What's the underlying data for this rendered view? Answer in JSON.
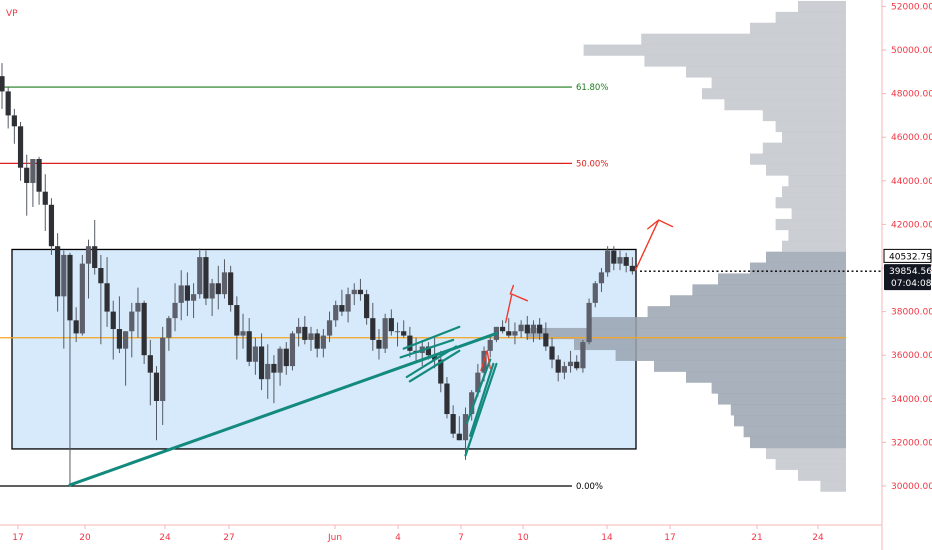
{
  "chart_data": {
    "type": "candlestick",
    "indicator_label": "VP",
    "x_ticks": [
      "17",
      "20",
      "24",
      "27",
      "Jun",
      "4",
      "7",
      "10",
      "14",
      "17",
      "21",
      "24"
    ],
    "y_ticks": [
      30000,
      32000,
      34000,
      36000,
      38000,
      40000,
      42000,
      44000,
      46000,
      48000,
      50000,
      52000
    ],
    "y_tick_labels": [
      "30000.00",
      "32000.00",
      "34000.00",
      "36000.00",
      "38000.00",
      "40000.00",
      "42000.00",
      "44000.00",
      "46000.00",
      "48000.00",
      "50000.00",
      "52000.00"
    ],
    "ylim": [
      27500,
      52300
    ],
    "fib_levels": [
      {
        "label": "61.80%",
        "value": 48300,
        "color": "#1b7a1b"
      },
      {
        "label": "50.00%",
        "value": 44800,
        "color": "#e0201c"
      },
      {
        "label": "0.00%",
        "value": 30000,
        "color": "#000000"
      }
    ],
    "range_box": {
      "top": 40850,
      "bottom": 31700,
      "fill": "#d6eafb"
    },
    "poc_level": 36800,
    "last_price": {
      "value": "39854.56",
      "countdown": "07:04:08",
      "level": 39854.56
    },
    "high_tag": {
      "value": "40532.79",
      "level": 40532.79
    },
    "candles": [
      [
        0.0,
        48800,
        49400,
        47300,
        48100
      ],
      [
        0.4,
        48100,
        48300,
        46400,
        47000
      ],
      [
        0.8,
        47000,
        47300,
        45700,
        46500
      ],
      [
        1.2,
        46500,
        46700,
        44000,
        44600
      ],
      [
        1.6,
        44600,
        45200,
        42400,
        43900
      ],
      [
        2.0,
        43900,
        45000,
        42800,
        45000
      ],
      [
        2.4,
        45000,
        45100,
        42900,
        43500
      ],
      [
        2.8,
        43500,
        44300,
        41700,
        42900
      ],
      [
        3.2,
        42900,
        43200,
        40600,
        41000
      ],
      [
        3.6,
        41000,
        41600,
        38000,
        38700
      ],
      [
        4.0,
        38700,
        40800,
        36300,
        40600
      ],
      [
        4.4,
        40600,
        40700,
        30000,
        37600
      ],
      [
        4.8,
        37600,
        38200,
        36600,
        37000
      ],
      [
        5.2,
        37000,
        40600,
        36900,
        40200
      ],
      [
        5.6,
        40200,
        41300,
        38600,
        41000
      ],
      [
        6.0,
        41000,
        42200,
        39700,
        40000
      ],
      [
        6.4,
        40000,
        40600,
        36500,
        39300
      ],
      [
        6.8,
        39300,
        40500,
        37300,
        38000
      ],
      [
        7.2,
        38000,
        38500,
        35800,
        37200
      ],
      [
        7.6,
        37200,
        38700,
        36100,
        36300
      ],
      [
        8.0,
        36300,
        37100,
        34600,
        37100
      ],
      [
        8.4,
        37100,
        38400,
        35900,
        38000
      ],
      [
        8.8,
        38000,
        39100,
        36800,
        38400
      ],
      [
        9.2,
        38400,
        38500,
        35600,
        36000
      ],
      [
        9.6,
        36000,
        36700,
        33700,
        35200
      ],
      [
        10.0,
        35200,
        35500,
        32100,
        33900
      ],
      [
        10.4,
        33900,
        37300,
        32800,
        36800
      ],
      [
        10.8,
        36800,
        37800,
        36200,
        37700
      ],
      [
        11.2,
        37700,
        39300,
        37100,
        38400
      ],
      [
        11.6,
        38400,
        39900,
        37600,
        39200
      ],
      [
        12.0,
        39200,
        39800,
        37800,
        38500
      ],
      [
        12.4,
        38500,
        39300,
        37700,
        38800
      ],
      [
        12.8,
        38800,
        40900,
        38600,
        40500
      ],
      [
        13.2,
        40500,
        40800,
        38300,
        38600
      ],
      [
        13.6,
        38600,
        39500,
        37800,
        39300
      ],
      [
        14.0,
        39300,
        40100,
        38100,
        38800
      ],
      [
        14.4,
        38800,
        40400,
        38600,
        39800
      ],
      [
        14.8,
        39800,
        40100,
        38000,
        38300
      ],
      [
        15.2,
        38300,
        38700,
        35800,
        36900
      ],
      [
        15.6,
        36900,
        37900,
        36300,
        37100
      ],
      [
        16.0,
        37100,
        37700,
        35500,
        35700
      ],
      [
        16.4,
        35700,
        36800,
        35100,
        36400
      ],
      [
        16.8,
        36400,
        37000,
        34400,
        34900
      ],
      [
        17.2,
        34900,
        36500,
        34000,
        35600
      ],
      [
        17.6,
        35600,
        36000,
        33800,
        35200
      ],
      [
        18.0,
        35200,
        36400,
        34600,
        36300
      ],
      [
        18.4,
        36300,
        36600,
        35100,
        35500
      ],
      [
        18.8,
        35500,
        37100,
        35300,
        37000
      ],
      [
        19.2,
        37000,
        37700,
        36400,
        37300
      ],
      [
        19.6,
        37300,
        37800,
        36500,
        36700
      ],
      [
        20.0,
        36700,
        37300,
        36200,
        37000
      ],
      [
        20.4,
        37000,
        37200,
        35900,
        36300
      ],
      [
        20.8,
        36300,
        37200,
        35900,
        36900
      ],
      [
        21.2,
        36900,
        38000,
        36600,
        37600
      ],
      [
        21.6,
        37600,
        38500,
        37300,
        38300
      ],
      [
        22.0,
        38300,
        39000,
        37800,
        38000
      ],
      [
        22.4,
        38000,
        39100,
        37500,
        38800
      ],
      [
        22.8,
        38800,
        39300,
        38300,
        39000
      ],
      [
        23.2,
        39000,
        39500,
        38500,
        38800
      ],
      [
        23.6,
        38800,
        39000,
        37400,
        37700
      ],
      [
        24.0,
        37700,
        38400,
        36200,
        36700
      ],
      [
        24.4,
        36700,
        37200,
        35800,
        36300
      ],
      [
        24.8,
        36300,
        37900,
        36100,
        37700
      ],
      [
        25.2,
        37700,
        38100,
        36900,
        37100
      ],
      [
        25.6,
        37100,
        37500,
        36400,
        37100
      ],
      [
        26.0,
        37100,
        37600,
        36800,
        36900
      ],
      [
        26.4,
        36900,
        37300,
        35900,
        36200
      ],
      [
        26.8,
        36200,
        36800,
        35700,
        36100
      ],
      [
        27.2,
        36100,
        36700,
        35500,
        36400
      ],
      [
        27.6,
        36400,
        36600,
        35800,
        36000
      ],
      [
        28.0,
        36000,
        36800,
        35400,
        35800
      ],
      [
        28.4,
        35800,
        36200,
        34300,
        34700
      ],
      [
        28.8,
        34700,
        35000,
        33100,
        33300
      ],
      [
        29.2,
        33300,
        33700,
        32200,
        32400
      ],
      [
        29.6,
        32400,
        33200,
        32100,
        32100
      ],
      [
        30.0,
        32100,
        33600,
        31200,
        33300
      ],
      [
        30.4,
        33300,
        34400,
        33000,
        34300
      ],
      [
        30.8,
        34300,
        35600,
        34100,
        35200
      ],
      [
        31.2,
        35200,
        36400,
        34800,
        36200
      ],
      [
        31.6,
        36200,
        36900,
        35900,
        36700
      ],
      [
        32.0,
        36700,
        37300,
        36600,
        37300
      ],
      [
        32.4,
        37300,
        37600,
        37000,
        37100
      ],
      [
        32.8,
        37100,
        37700,
        36800,
        36900
      ],
      [
        33.2,
        36900,
        37500,
        36500,
        37100
      ],
      [
        33.6,
        37100,
        37600,
        36800,
        37400
      ],
      [
        34.0,
        37400,
        37800,
        36700,
        37000
      ],
      [
        34.4,
        37000,
        37600,
        36600,
        37400
      ],
      [
        34.8,
        37400,
        37700,
        36700,
        37000
      ],
      [
        35.2,
        37000,
        37500,
        36200,
        36400
      ],
      [
        35.6,
        36400,
        36800,
        35400,
        35800
      ],
      [
        36.0,
        35800,
        36000,
        34800,
        35200
      ],
      [
        36.4,
        35200,
        35700,
        34900,
        35500
      ],
      [
        36.8,
        35500,
        36200,
        35200,
        35700
      ],
      [
        37.2,
        35700,
        36000,
        35300,
        35400
      ],
      [
        37.6,
        35400,
        36700,
        35200,
        36600
      ],
      [
        38.0,
        36600,
        38600,
        36500,
        38400
      ],
      [
        38.4,
        38400,
        39400,
        38200,
        39300
      ],
      [
        38.8,
        39300,
        40000,
        38900,
        39800
      ],
      [
        39.2,
        39800,
        41000,
        39600,
        40800
      ],
      [
        39.6,
        40800,
        41000,
        39900,
        40200
      ],
      [
        40.0,
        40200,
        40800,
        39900,
        40500
      ],
      [
        40.4,
        40500,
        40700,
        39800,
        40100
      ],
      [
        40.8,
        40100,
        40500,
        39700,
        39850
      ]
    ],
    "volume_profile": {
      "price_bins": [
        30000,
        30500,
        31000,
        31500,
        32000,
        32500,
        33000,
        33500,
        34000,
        34500,
        35000,
        35500,
        36000,
        36500,
        37000,
        37500,
        38000,
        38500,
        39000,
        39500,
        40000,
        40500,
        41000,
        41500,
        42000,
        42500,
        43000,
        43500,
        44000,
        44500,
        45000,
        45500,
        46000,
        46500,
        47000,
        47500,
        48000,
        48500,
        49000,
        49500,
        50000,
        50500,
        51000,
        51500,
        52000
      ],
      "volumes": [
        0.08,
        0.15,
        0.22,
        0.25,
        0.3,
        0.32,
        0.35,
        0.36,
        0.4,
        0.42,
        0.5,
        0.6,
        0.72,
        0.85,
        1.0,
        0.8,
        0.62,
        0.55,
        0.48,
        0.4,
        0.3,
        0.25,
        0.2,
        0.18,
        0.22,
        0.17,
        0.22,
        0.2,
        0.18,
        0.25,
        0.3,
        0.26,
        0.2,
        0.22,
        0.26,
        0.38,
        0.45,
        0.42,
        0.5,
        0.63,
        0.82,
        0.64,
        0.3,
        0.22,
        0.15
      ]
    },
    "drawings": {
      "channel_color": "#138a7e",
      "arrow_color": "#ef3b2c",
      "trend_lines": [
        [
          [
            4.4,
            30050
          ],
          [
            32.0,
            37000
          ]
        ]
      ],
      "channel_lines": [
        [
          [
            26.0,
            36300
          ],
          [
            29.6,
            37300
          ]
        ],
        [
          [
            25.8,
            35900
          ],
          [
            29.2,
            36700
          ]
        ],
        [
          [
            26.2,
            35000
          ],
          [
            29.4,
            36400
          ]
        ],
        [
          [
            26.4,
            34800
          ],
          [
            29.6,
            36200
          ]
        ],
        [
          [
            30.0,
            31400
          ],
          [
            32.0,
            35600
          ]
        ],
        [
          [
            30.1,
            32900
          ],
          [
            31.6,
            35800
          ]
        ],
        [
          [
            30.3,
            32300
          ],
          [
            31.8,
            35600
          ]
        ]
      ],
      "arrows": [
        [
          [
            31.0,
            35300
          ],
          [
            31.4,
            36200
          ],
          [
            31.6,
            35400
          ]
        ],
        [
          [
            32.6,
            37500
          ],
          [
            33.0,
            38800
          ],
          [
            34.0,
            38500
          ]
        ],
        [
          [
            32.9,
            38800
          ],
          [
            33.1,
            39200
          ]
        ],
        [
          [
            41.0,
            39900
          ],
          [
            42.5,
            42200
          ],
          [
            41.8,
            41800
          ],
          [
            42.5,
            42200
          ],
          [
            43.4,
            41900
          ]
        ]
      ]
    }
  }
}
